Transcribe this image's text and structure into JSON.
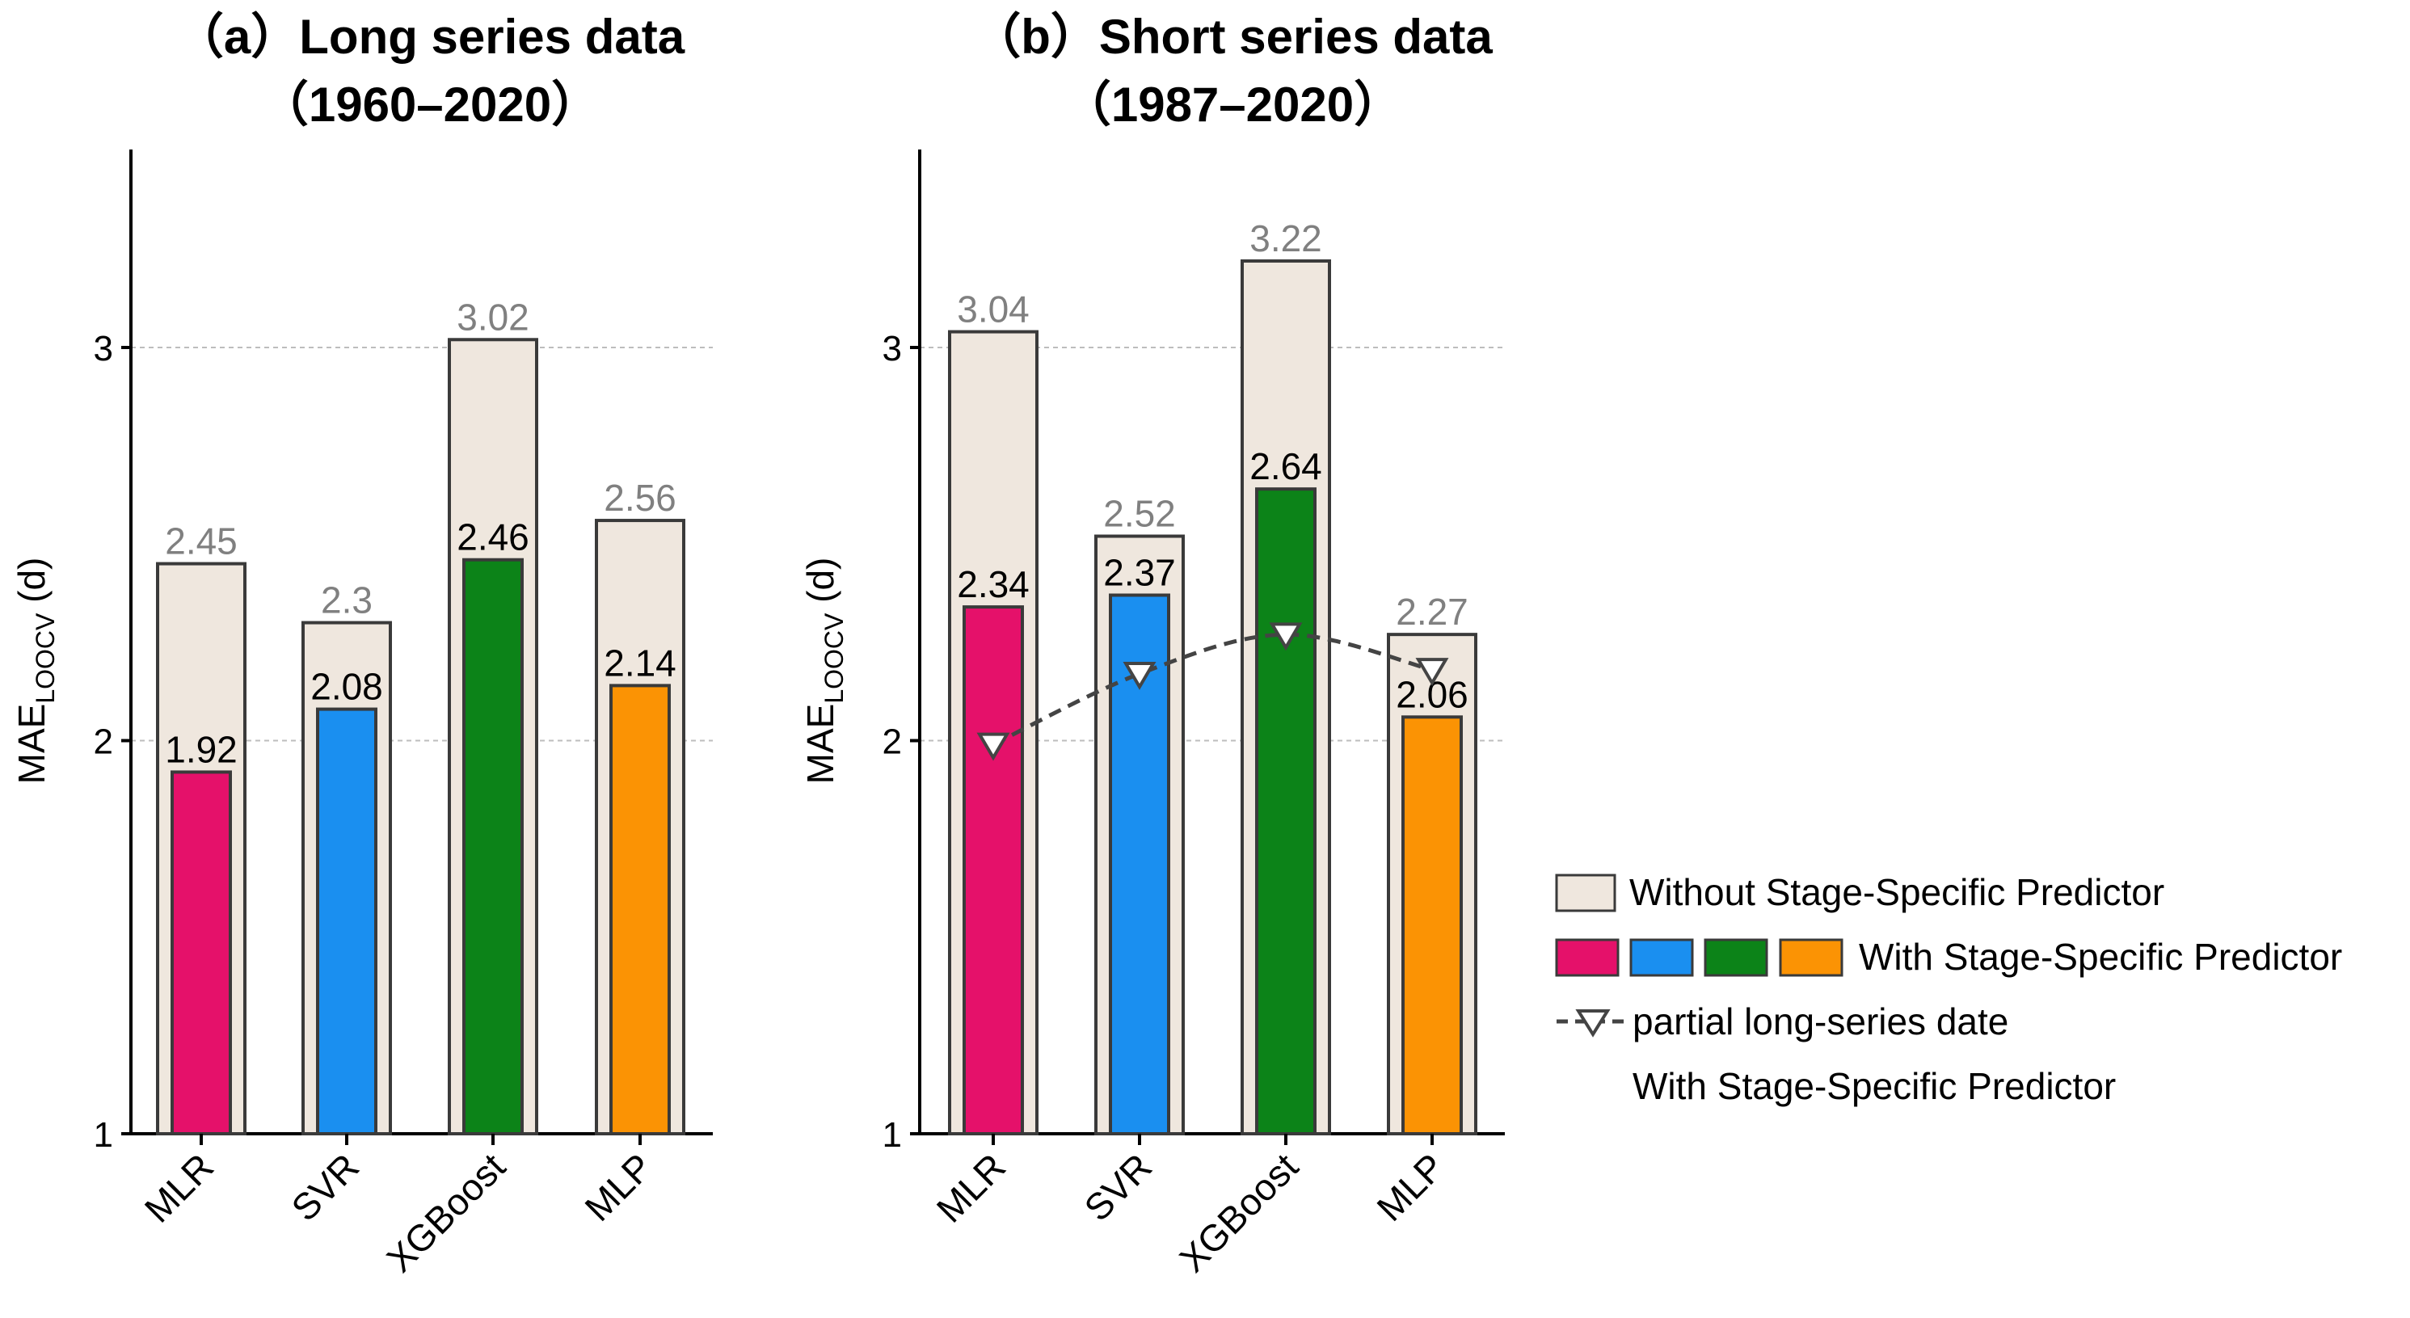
{
  "chart_data": [
    {
      "id": "a",
      "type": "bar",
      "title_line1": "（a）Long series data",
      "title_line2": "（1960–2020）",
      "ylabel": "MAE",
      "ylabel_sub": "LOOCV",
      "ylabel_unit": " (d)",
      "ylim": [
        1,
        3.5
      ],
      "yticks": [
        1,
        2,
        3
      ],
      "grid": "horizontal dashed",
      "categories": [
        "MLR",
        "SVR",
        "XGBoost",
        "MLP"
      ],
      "series": [
        {
          "name": "Without Stage-Specific Predictor",
          "values": [
            2.45,
            2.3,
            3.02,
            2.56
          ],
          "labels": [
            "2.45",
            "2.3",
            "3.02",
            "2.56"
          ]
        },
        {
          "name": "With Stage-Specific Predictor",
          "values": [
            1.92,
            2.08,
            2.46,
            2.14
          ],
          "labels": [
            "1.92",
            "2.08",
            "2.46",
            "2.14"
          ]
        }
      ]
    },
    {
      "id": "b",
      "type": "bar",
      "title_line1": "（b）Short series data",
      "title_line2": "（1987–2020）",
      "ylabel": "MAE",
      "ylabel_sub": "LOOCV",
      "ylabel_unit": " (d)",
      "ylim": [
        1,
        3.5
      ],
      "yticks": [
        1,
        2,
        3
      ],
      "grid": "horizontal dashed",
      "categories": [
        "MLR",
        "SVR",
        "XGBoost",
        "MLP"
      ],
      "series": [
        {
          "name": "Without Stage-Specific Predictor",
          "values": [
            3.04,
            2.52,
            3.22,
            2.27
          ],
          "labels": [
            "3.04",
            "2.52",
            "3.22",
            "2.27"
          ]
        },
        {
          "name": "With Stage-Specific Predictor",
          "values": [
            2.34,
            2.37,
            2.64,
            2.06
          ],
          "labels": [
            "2.34",
            "2.37",
            "2.64",
            "2.06"
          ]
        },
        {
          "name": "partial long-series date With Stage-Specific Predictor",
          "kind": "line",
          "values": [
            1.99,
            2.17,
            2.27,
            2.18
          ]
        }
      ]
    }
  ],
  "colors": {
    "without_fill": "#efe7de",
    "bar_stroke": "#3a3a3a",
    "categories": [
      "#e5116a",
      "#1a8ff0",
      "#0c8318",
      "#fb9304"
    ],
    "line": "#444444",
    "grid": "#bdbdbd"
  },
  "legend": {
    "without": "Without Stage-Specific Predictor",
    "with": "With Stage-Specific Predictor",
    "partial_line1": "partial long-series date",
    "partial_line2": "With Stage-Specific Predictor"
  }
}
